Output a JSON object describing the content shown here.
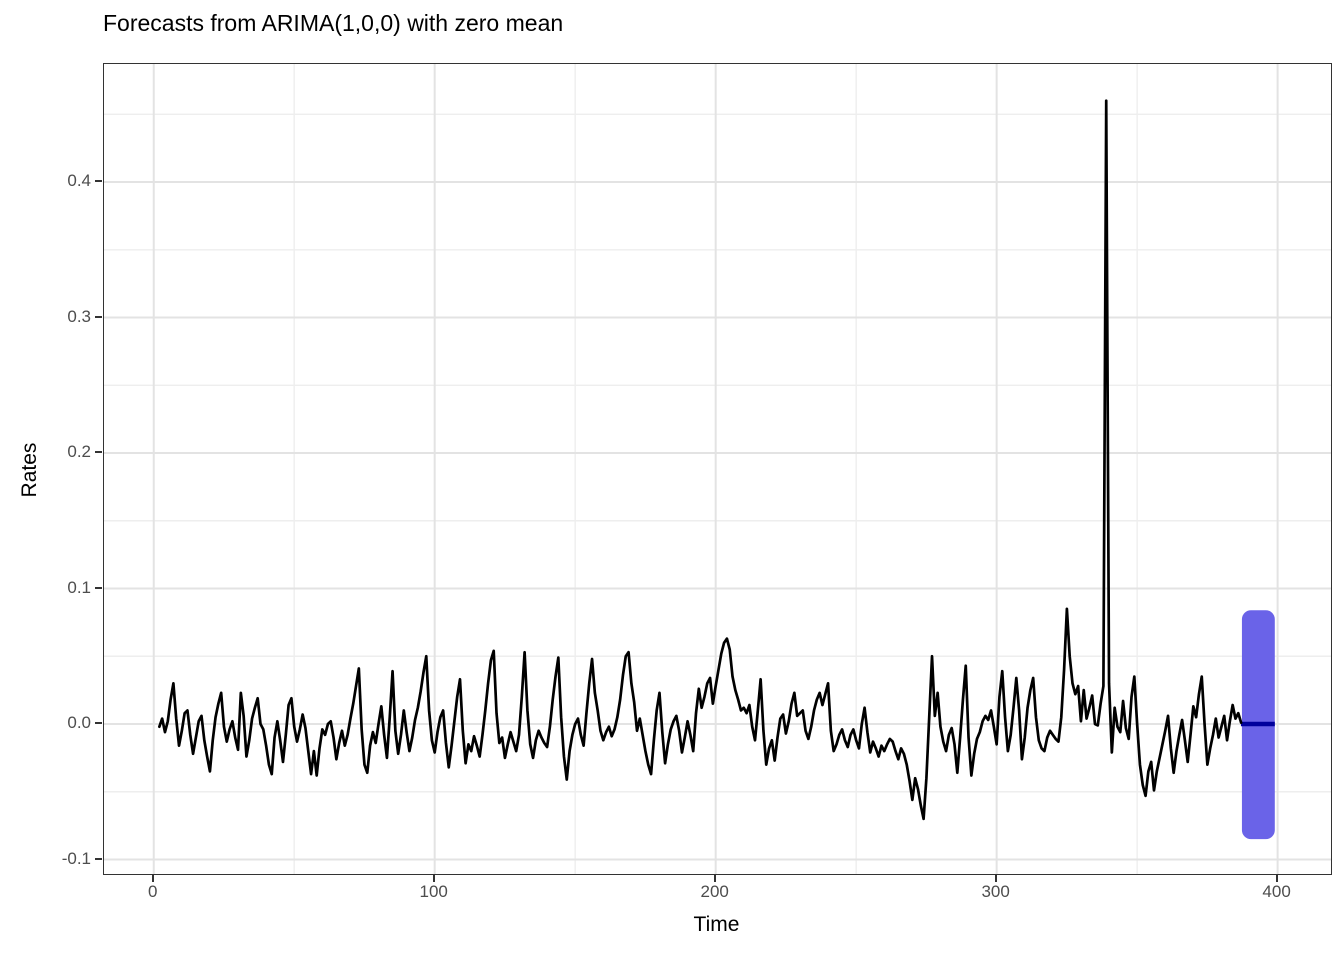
{
  "chart_data": {
    "type": "line",
    "title": "Forecasts from ARIMA(1,0,0) with zero mean",
    "xlabel": "Time",
    "ylabel": "Rates",
    "xlim": [
      -17.7,
      419
    ],
    "ylim": [
      -0.1107,
      0.4871
    ],
    "grid": true,
    "legend_position": "none",
    "x_ticks_major": [
      0,
      100,
      200,
      300,
      400
    ],
    "x_tick_labels": [
      "0",
      "100",
      "200",
      "300",
      "400"
    ],
    "x_ticks_minor": [
      50,
      150,
      250,
      350
    ],
    "y_ticks_major": [
      -0.1,
      0.0,
      0.1,
      0.2,
      0.3,
      0.4
    ],
    "y_tick_labels": [
      "-0.1",
      "0.0",
      "0.1",
      "0.2",
      "0.3",
      "0.4"
    ],
    "y_ticks_minor": [
      -0.05,
      0.05,
      0.15,
      0.25,
      0.35,
      0.45
    ],
    "colors": {
      "series": "#000000",
      "grid_major": "#e3e3e3",
      "grid_minor": "#eeeeee",
      "panel_border": "#333333",
      "tick": "#333333",
      "tick_label": "#4d4d4d",
      "forecast_fill": "#6a63e8",
      "forecast_mean": "#00009c"
    },
    "series": [
      {
        "name": "observed",
        "x_start": 2,
        "x_step": 1,
        "values": [
          -0.002,
          0.004,
          -0.006,
          0.002,
          0.018,
          0.03,
          0.004,
          -0.016,
          -0.005,
          0.008,
          0.01,
          -0.008,
          -0.022,
          -0.01,
          0.002,
          0.006,
          -0.012,
          -0.024,
          -0.035,
          -0.012,
          0.005,
          0.015,
          0.023,
          -0.002,
          -0.013,
          -0.004,
          0.002,
          -0.01,
          -0.019,
          0.023,
          0.006,
          -0.024,
          -0.012,
          0.004,
          0.012,
          0.019,
          0.0,
          -0.004,
          -0.016,
          -0.03,
          -0.037,
          -0.01,
          0.002,
          -0.012,
          -0.028,
          -0.008,
          0.014,
          0.019,
          -0.002,
          -0.013,
          -0.004,
          0.007,
          -0.003,
          -0.02,
          -0.037,
          -0.02,
          -0.038,
          -0.018,
          -0.004,
          -0.008,
          0.0,
          0.002,
          -0.01,
          -0.026,
          -0.014,
          -0.005,
          -0.016,
          -0.008,
          0.004,
          0.015,
          0.028,
          0.041,
          -0.004,
          -0.03,
          -0.036,
          -0.016,
          -0.006,
          -0.014,
          0.0,
          0.013,
          -0.008,
          -0.025,
          0.005,
          0.039,
          -0.005,
          -0.022,
          -0.008,
          0.01,
          -0.006,
          -0.02,
          -0.01,
          0.003,
          0.012,
          0.024,
          0.038,
          0.05,
          0.01,
          -0.012,
          -0.021,
          -0.006,
          0.005,
          0.01,
          -0.014,
          -0.032,
          -0.016,
          0.002,
          0.02,
          0.033,
          -0.005,
          -0.029,
          -0.015,
          -0.02,
          -0.009,
          -0.016,
          -0.024,
          -0.008,
          0.01,
          0.03,
          0.047,
          0.054,
          0.008,
          -0.014,
          -0.01,
          -0.025,
          -0.015,
          -0.006,
          -0.013,
          -0.02,
          -0.008,
          0.02,
          0.053,
          0.01,
          -0.015,
          -0.025,
          -0.012,
          -0.005,
          -0.01,
          -0.014,
          -0.017,
          -0.002,
          0.018,
          0.035,
          0.049,
          0.005,
          -0.024,
          -0.041,
          -0.02,
          -0.008,
          0.0,
          0.004,
          -0.008,
          -0.016,
          0.008,
          0.03,
          0.048,
          0.023,
          0.01,
          -0.005,
          -0.012,
          -0.006,
          -0.002,
          -0.009,
          -0.004,
          0.005,
          0.018,
          0.036,
          0.05,
          0.053,
          0.03,
          0.016,
          -0.005,
          0.004,
          -0.008,
          -0.02,
          -0.03,
          -0.037,
          -0.012,
          0.01,
          0.023,
          -0.006,
          -0.029,
          -0.015,
          -0.004,
          0.002,
          0.006,
          -0.005,
          -0.021,
          -0.01,
          0.002,
          -0.008,
          -0.02,
          0.008,
          0.026,
          0.012,
          0.02,
          0.03,
          0.034,
          0.015,
          0.028,
          0.04,
          0.052,
          0.06,
          0.063,
          0.055,
          0.035,
          0.025,
          0.018,
          0.01,
          0.012,
          0.008,
          0.014,
          -0.002,
          -0.012,
          0.01,
          0.033,
          -0.005,
          -0.03,
          -0.018,
          -0.012,
          -0.027,
          -0.01,
          0.004,
          0.007,
          -0.007,
          0.002,
          0.015,
          0.023,
          0.006,
          0.008,
          0.01,
          -0.005,
          -0.011,
          -0.002,
          0.01,
          0.018,
          0.023,
          0.014,
          0.022,
          0.03,
          -0.005,
          -0.02,
          -0.015,
          -0.008,
          -0.004,
          -0.012,
          -0.017,
          -0.008,
          -0.004,
          -0.012,
          -0.018,
          0.0,
          0.012,
          -0.006,
          -0.021,
          -0.013,
          -0.018,
          -0.024,
          -0.016,
          -0.02,
          -0.015,
          -0.011,
          -0.013,
          -0.02,
          -0.026,
          -0.018,
          -0.022,
          -0.03,
          -0.042,
          -0.056,
          -0.04,
          -0.048,
          -0.06,
          -0.07,
          -0.04,
          0.005,
          0.05,
          0.006,
          0.023,
          -0.002,
          -0.013,
          -0.02,
          -0.008,
          -0.003,
          -0.015,
          -0.036,
          -0.01,
          0.018,
          0.043,
          -0.01,
          -0.038,
          -0.022,
          -0.011,
          -0.006,
          0.002,
          0.006,
          0.003,
          0.01,
          -0.002,
          -0.015,
          0.02,
          0.039,
          0.005,
          -0.02,
          -0.008,
          0.012,
          0.034,
          0.01,
          -0.026,
          -0.01,
          0.012,
          0.025,
          0.034,
          0.005,
          -0.012,
          -0.018,
          -0.02,
          -0.01,
          -0.005,
          -0.008,
          -0.011,
          -0.013,
          0.005,
          0.04,
          0.085,
          0.05,
          0.03,
          0.022,
          0.028,
          0.002,
          0.025,
          0.004,
          0.012,
          0.021,
          0.0,
          -0.001,
          0.015,
          0.028,
          0.46,
          0.03,
          -0.021,
          0.012,
          -0.002,
          -0.006,
          0.017,
          -0.003,
          -0.011,
          0.02,
          0.035,
          0.0,
          -0.03,
          -0.045,
          -0.053,
          -0.035,
          -0.028,
          -0.049,
          -0.035,
          -0.025,
          -0.015,
          -0.005,
          0.006,
          -0.018,
          -0.036,
          -0.02,
          -0.008,
          0.003,
          -0.012,
          -0.028,
          -0.008,
          0.013,
          0.005,
          0.022,
          0.035,
          0.0,
          -0.03,
          -0.018,
          -0.008,
          0.004,
          -0.01,
          -0.002,
          0.006,
          -0.012,
          0.002,
          0.014,
          0.004,
          0.008,
          0.001
        ]
      }
    ],
    "forecast": {
      "t_start": 387.3,
      "t_end": 399.0,
      "mean": 0.0,
      "upper": 0.084,
      "lower": -0.085
    }
  }
}
